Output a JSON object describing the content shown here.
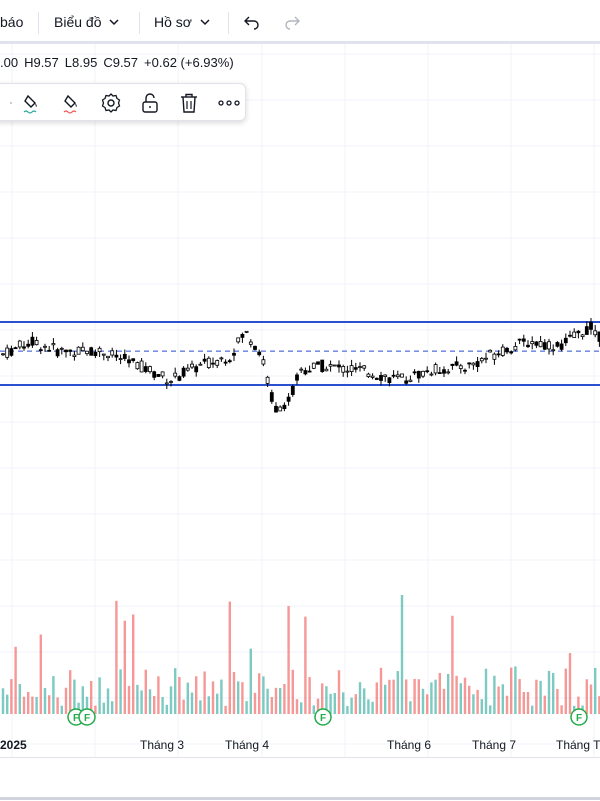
{
  "topbar": {
    "alerts_partial": "báo",
    "chart_menu": "Biểu đồ",
    "profile_menu": "Hồ sơ"
  },
  "ohlc": {
    "open": ".00",
    "high": "H9.57",
    "low": "L8.95",
    "close": "C9.57",
    "change": "+0.62 (+6.93%)"
  },
  "toolbar": {
    "icons": [
      "paint-bucket-icon",
      "paint-bucket-icon",
      "settings-gear-icon",
      "lock-icon",
      "trash-icon",
      "more-icon"
    ]
  },
  "chart_data": {
    "type": "candlestick",
    "x_tick_labels": [
      "2025",
      "Tháng 3",
      "Tháng 4",
      "Tháng 6",
      "Tháng 7",
      "Tháng T"
    ],
    "channel": {
      "upper": 9.6,
      "lower": 8.95,
      "mid_dashed": 9.3
    },
    "markers": [
      "F",
      "F",
      "F",
      "F"
    ],
    "colors": {
      "up": "#26a69a",
      "down": "#ef5350",
      "channel": "#2a4fd0",
      "candle": "#000000"
    }
  }
}
